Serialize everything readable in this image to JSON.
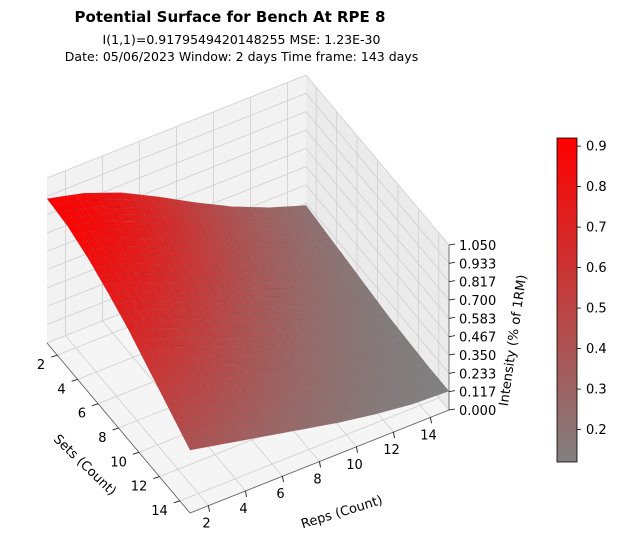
{
  "title": "Potential Surface for Bench At RPE 8",
  "subtitle_line1": "I(1,1)=0.9179549420148255 MSE: 1.23E-30",
  "subtitle_line2": "Date: 05/06/2023  Window: 2 days  Time frame: 143 days",
  "chart_data": {
    "type": "surface",
    "title": "Potential Surface for Bench At RPE 8",
    "x_axis": {
      "label": "Sets (Count)",
      "range": [
        1,
        15
      ],
      "ticks": [
        2,
        4,
        6,
        8,
        10,
        12,
        14
      ]
    },
    "y_axis": {
      "label": "Reps (Count)",
      "range": [
        1,
        15
      ],
      "ticks": [
        2,
        4,
        6,
        8,
        10,
        12,
        14
      ]
    },
    "z_axis": {
      "label": "Intensity (% of 1RM)",
      "range": [
        0,
        1.05
      ],
      "ticks": [
        "0.000",
        "0.117",
        "0.233",
        "0.350",
        "0.467",
        "0.583",
        "0.700",
        "0.817",
        "0.933",
        "1.050"
      ]
    },
    "colorbar": {
      "min": 0.12,
      "max": 0.92,
      "ticks": [
        "0.2",
        "0.3",
        "0.4",
        "0.5",
        "0.6",
        "0.7",
        "0.8",
        "0.9"
      ],
      "low_color": "#808080",
      "high_color": "#ff0000"
    },
    "surface": {
      "sets": [
        1,
        3,
        5,
        7,
        9,
        11,
        13,
        15
      ],
      "reps": [
        1,
        3,
        5,
        7,
        9,
        11,
        13,
        15
      ],
      "z": [
        [
          0.918,
          0.86,
          0.77,
          0.65,
          0.52,
          0.4,
          0.3,
          0.22
        ],
        [
          0.9,
          0.84,
          0.74,
          0.62,
          0.49,
          0.37,
          0.28,
          0.2
        ],
        [
          0.85,
          0.78,
          0.68,
          0.56,
          0.44,
          0.33,
          0.25,
          0.18
        ],
        [
          0.78,
          0.7,
          0.6,
          0.49,
          0.38,
          0.29,
          0.22,
          0.16
        ],
        [
          0.7,
          0.62,
          0.52,
          0.42,
          0.33,
          0.25,
          0.19,
          0.14
        ],
        [
          0.6,
          0.53,
          0.45,
          0.36,
          0.28,
          0.22,
          0.17,
          0.13
        ],
        [
          0.5,
          0.44,
          0.37,
          0.3,
          0.24,
          0.19,
          0.15,
          0.12
        ],
        [
          0.4,
          0.35,
          0.3,
          0.25,
          0.2,
          0.16,
          0.13,
          0.12
        ]
      ]
    }
  }
}
